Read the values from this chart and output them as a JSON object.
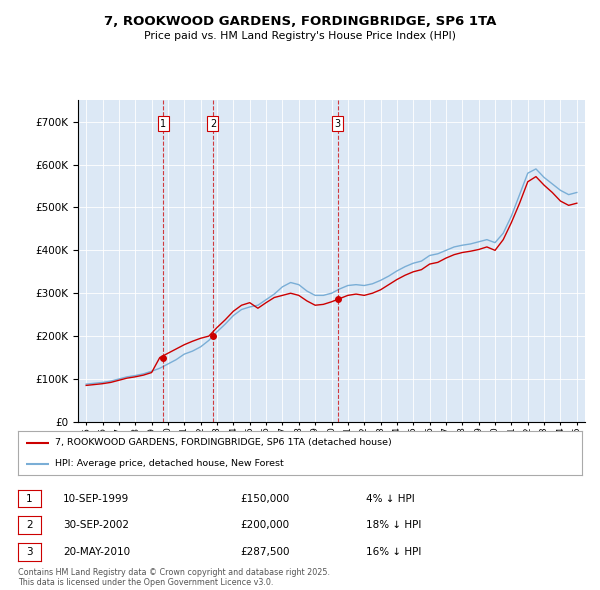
{
  "title": "7, ROOKWOOD GARDENS, FORDINGBRIDGE, SP6 1TA",
  "subtitle": "Price paid vs. HM Land Registry's House Price Index (HPI)",
  "legend_line1": "7, ROOKWOOD GARDENS, FORDINGBRIDGE, SP6 1TA (detached house)",
  "legend_line2": "HPI: Average price, detached house, New Forest",
  "footer": "Contains HM Land Registry data © Crown copyright and database right 2025.\nThis data is licensed under the Open Government Licence v3.0.",
  "purchases": [
    {
      "num": 1,
      "date": "10-SEP-1999",
      "price": 150000,
      "pct": "4%",
      "dir": "↓"
    },
    {
      "num": 2,
      "date": "30-SEP-2002",
      "price": 200000,
      "pct": "18%",
      "dir": "↓"
    },
    {
      "num": 3,
      "date": "20-MAY-2010",
      "price": 287500,
      "pct": "16%",
      "dir": "↓"
    }
  ],
  "purchase_years": [
    1999.7,
    2002.75,
    2010.38
  ],
  "purchase_prices": [
    150000,
    200000,
    287500
  ],
  "red_color": "#cc0000",
  "blue_color": "#7aaed6",
  "background_color": "#dce8f5",
  "ylim": [
    0,
    750000
  ],
  "xlim": [
    1994.5,
    2025.5
  ]
}
